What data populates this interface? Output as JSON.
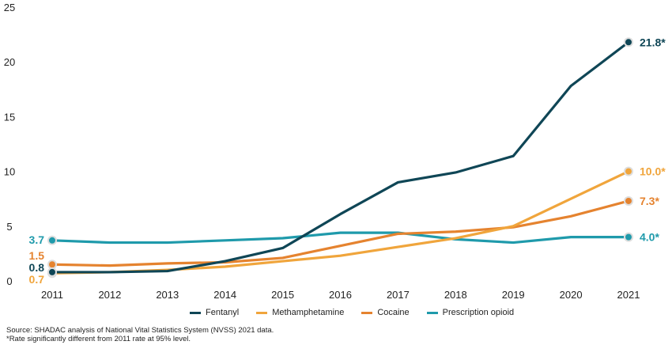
{
  "chart_data": {
    "type": "line",
    "title": "",
    "xlabel": "",
    "ylabel": "",
    "x": [
      "2011",
      "2012",
      "2013",
      "2014",
      "2015",
      "2016",
      "2017",
      "2018",
      "2019",
      "2020",
      "2021"
    ],
    "ylim": [
      0,
      25
    ],
    "yticks": [
      "0",
      "5",
      "10",
      "15",
      "20",
      "25"
    ],
    "grid": false,
    "legend_position": "bottom",
    "series": [
      {
        "name": "Fentanyl",
        "color": "#0f4656",
        "values": [
          0.8,
          0.8,
          0.9,
          1.8,
          3.0,
          6.1,
          9.0,
          9.9,
          11.4,
          17.8,
          21.8
        ],
        "start_label": "0.8",
        "end_label": "21.8*"
      },
      {
        "name": "Methamphetamine",
        "color": "#f0a53c",
        "values": [
          0.7,
          0.8,
          1.0,
          1.3,
          1.8,
          2.3,
          3.1,
          3.9,
          5.0,
          7.5,
          10.0
        ],
        "start_label": "0.7",
        "end_label": "10.0*"
      },
      {
        "name": "Cocaine",
        "color": "#e5832f",
        "values": [
          1.5,
          1.4,
          1.6,
          1.7,
          2.1,
          3.2,
          4.3,
          4.5,
          4.9,
          5.9,
          7.3
        ],
        "start_label": "1.5",
        "end_label": "7.3*"
      },
      {
        "name": "Prescription opioid",
        "color": "#1f9aab",
        "values": [
          3.7,
          3.5,
          3.5,
          3.7,
          3.9,
          4.4,
          4.4,
          3.8,
          3.5,
          4.0,
          4.0
        ],
        "start_label": "3.7",
        "end_label": "4.0*"
      }
    ]
  },
  "footnotes": {
    "source": "Source: SHADAC analysis of National Vital Statistics System (NVSS) 2021 data.",
    "note": "*Rate significantly different from 2011 rate at 95% level."
  }
}
